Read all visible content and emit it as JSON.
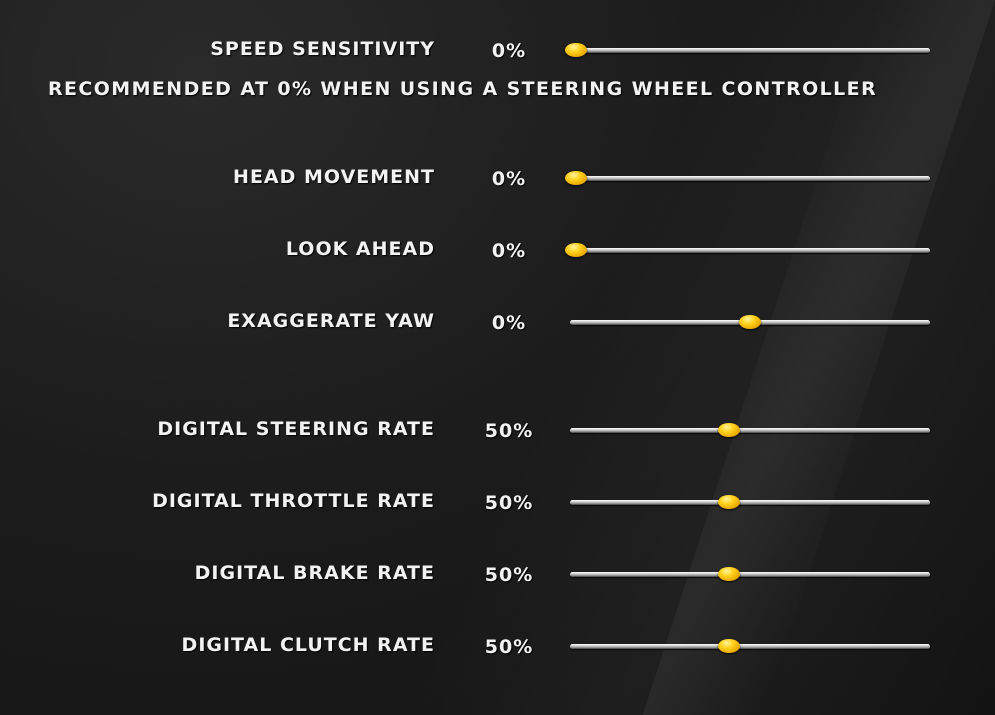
{
  "colors": {
    "background": "#1c1c1c",
    "text": "#f2f2f2",
    "thumb": "#ffd21a",
    "track": "#d4d4d4"
  },
  "settings": {
    "speed_sensitivity": {
      "label": "SPEED SENSITIVITY",
      "value": "0%",
      "level": 0.0
    },
    "note": "RECOMMENDED AT 0% WHEN USING A STEERING WHEEL CONTROLLER",
    "head_movement": {
      "label": "HEAD MOVEMENT",
      "value": "0%",
      "level": 0.0
    },
    "look_ahead": {
      "label": "LOOK AHEAD",
      "value": "0%",
      "level": 0.0
    },
    "exaggerate_yaw": {
      "label": "EXAGGERATE YAW",
      "value": "0%",
      "level": 0.5
    },
    "digital_steering_rate": {
      "label": "DIGITAL STEERING RATE",
      "value": "50%",
      "level": 0.44
    },
    "digital_throttle_rate": {
      "label": "DIGITAL THROTTLE RATE",
      "value": "50%",
      "level": 0.44
    },
    "digital_brake_rate": {
      "label": "DIGITAL BRAKE RATE",
      "value": "50%",
      "level": 0.44
    },
    "digital_clutch_rate": {
      "label": "DIGITAL CLUTCH RATE",
      "value": "50%",
      "level": 0.44
    }
  }
}
